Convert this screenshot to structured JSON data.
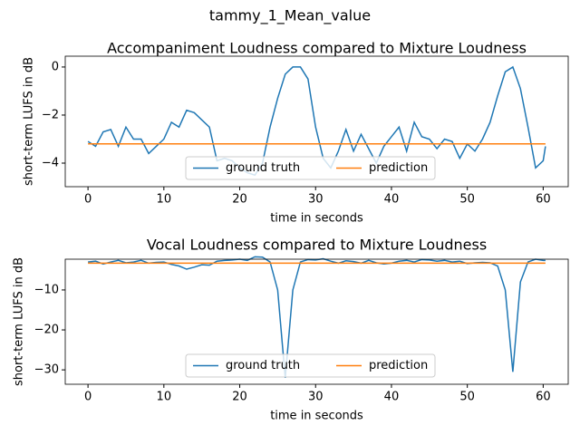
{
  "title": "tammy_1_Mean_value",
  "chart_data": [
    {
      "type": "line",
      "title": "Accompaniment Loudness compared to Mixture Loudness",
      "xlabel": "time in seconds",
      "ylabel": "short-term LUFS in dB",
      "xlim": [
        -3,
        63.3
      ],
      "xticks": [
        0,
        10,
        20,
        30,
        40,
        50,
        60
      ],
      "ylim": [
        -4.98,
        0.45
      ],
      "yticks": [
        {
          "value": -4,
          "label": "−4"
        },
        {
          "value": -2,
          "label": "−2"
        },
        0
      ],
      "legend": "lower center",
      "series": [
        {
          "name": "ground truth",
          "color": "#1f77b4",
          "x": [
            0,
            1,
            2,
            3,
            4,
            5,
            6,
            7,
            8,
            9,
            10,
            11,
            12,
            13,
            14,
            15,
            16,
            17,
            18,
            19,
            20,
            21,
            22,
            23,
            24,
            25,
            26,
            27,
            28,
            29,
            30,
            31,
            32,
            33,
            34,
            35,
            36,
            37,
            38,
            39,
            40,
            41,
            42,
            43,
            44,
            45,
            46,
            47,
            48,
            49,
            50,
            51,
            52,
            53,
            54,
            55,
            56,
            57,
            58,
            59,
            60,
            60.3
          ],
          "values": [
            -3.1,
            -3.3,
            -2.7,
            -2.6,
            -3.3,
            -2.5,
            -3.0,
            -3.0,
            -3.6,
            -3.3,
            -3.0,
            -2.3,
            -2.5,
            -1.8,
            -1.9,
            -2.2,
            -2.5,
            -3.9,
            -3.8,
            -3.9,
            -4.2,
            -4.4,
            -4.5,
            -4.0,
            -2.5,
            -1.3,
            -0.3,
            0,
            0,
            -0.5,
            -2.5,
            -3.8,
            -4.2,
            -3.5,
            -2.6,
            -3.5,
            -2.8,
            -3.4,
            -4.0,
            -3.3,
            -2.9,
            -2.5,
            -3.5,
            -2.3,
            -2.9,
            -3.0,
            -3.4,
            -3.0,
            -3.1,
            -3.8,
            -3.2,
            -3.5,
            -3.0,
            -2.3,
            -1.2,
            -0.2,
            0,
            -0.9,
            -2.5,
            -4.2,
            -3.9,
            -3.3
          ]
        },
        {
          "name": "prediction",
          "color": "#ff7f0e",
          "x": [
            0,
            60.3
          ],
          "values": [
            -3.2,
            -3.2
          ]
        }
      ]
    },
    {
      "type": "line",
      "title": "Vocal Loudness compared to Mixture Loudness",
      "xlabel": "time in seconds",
      "ylabel": "short-term LUFS in dB",
      "xlim": [
        -3,
        63.3
      ],
      "xticks": [
        0,
        10,
        20,
        30,
        40,
        50,
        60
      ],
      "ylim": [
        -33.6,
        -2.3
      ],
      "yticks": [
        {
          "value": -30,
          "label": "−30"
        },
        {
          "value": -20,
          "label": "−20"
        },
        {
          "value": -10,
          "label": "−10"
        }
      ],
      "legend": "lower center",
      "series": [
        {
          "name": "ground truth",
          "color": "#1f77b4",
          "x": [
            0,
            1,
            2,
            3,
            4,
            5,
            6,
            7,
            8,
            9,
            10,
            11,
            12,
            13,
            14,
            15,
            16,
            17,
            18,
            19,
            20,
            21,
            22,
            23,
            24,
            25,
            26,
            27,
            28,
            29,
            30,
            31,
            32,
            33,
            34,
            35,
            36,
            37,
            38,
            39,
            40,
            41,
            42,
            43,
            44,
            45,
            46,
            47,
            48,
            49,
            50,
            51,
            52,
            53,
            54,
            55,
            56,
            57,
            58,
            59,
            60,
            60.3
          ],
          "values": [
            -3,
            -2.8,
            -3.5,
            -3,
            -2.6,
            -3.2,
            -3,
            -2.6,
            -3.3,
            -3.1,
            -3,
            -3.6,
            -4,
            -4.8,
            -4.3,
            -3.7,
            -3.8,
            -2.8,
            -2.6,
            -2.5,
            -2.3,
            -2.6,
            -1.7,
            -1.8,
            -3,
            -10,
            -32,
            -10,
            -3,
            -2.4,
            -2.5,
            -2.2,
            -2.8,
            -3.3,
            -2.7,
            -2.9,
            -3.3,
            -2.6,
            -3.2,
            -3.5,
            -3.3,
            -2.8,
            -2.6,
            -3,
            -2.4,
            -2.5,
            -2.8,
            -2.6,
            -3,
            -2.8,
            -3.4,
            -3.2,
            -3.1,
            -3.2,
            -4,
            -10,
            -30.5,
            -8,
            -3,
            -2.3,
            -2.6,
            -2.6
          ]
        },
        {
          "name": "prediction",
          "color": "#ff7f0e",
          "x": [
            0,
            60.3
          ],
          "values": [
            -3.3,
            -3.3
          ]
        }
      ]
    }
  ]
}
